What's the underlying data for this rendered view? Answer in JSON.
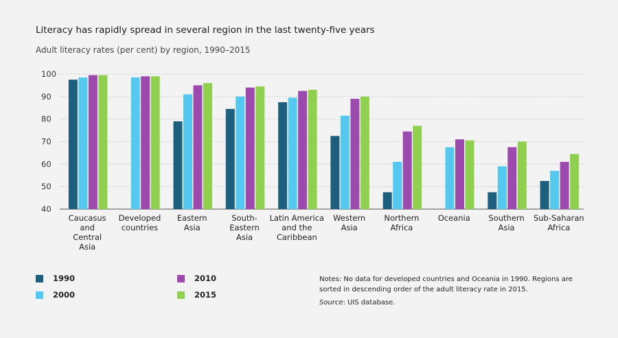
{
  "title": "Literacy has rapidly spread in several region in the last twenty-five years",
  "subtitle": "Adult literacy rates (per cent) by region, 1990–2015",
  "notes": "Notes: No data for developed countries and Oceania in 1990. Regions are sorted in descending order of the adult literacy rate in 2015.",
  "source_label": "Source",
  "source_text": ": UIS database.",
  "colors": {
    "1990": "#1d5f7d",
    "2000": "#55c8f0",
    "2010": "#9c4aad",
    "2015": "#8fd14f",
    "grid": "#c8c8c8",
    "axis": "#555555"
  },
  "chart_data": {
    "type": "bar",
    "title": "Literacy has rapidly spread in several region in the last twenty-five years",
    "subtitle": "Adult literacy rates (per cent) by region, 1990–2015",
    "ylim": [
      40,
      100
    ],
    "yticks": [
      40,
      50,
      60,
      70,
      80,
      90,
      100
    ],
    "grid": true,
    "legend_position": "bottom-left",
    "categories": [
      [
        "Caucasus",
        "and",
        "Central",
        "Asia"
      ],
      [
        "Developed",
        "countries"
      ],
      [
        "Eastern",
        "Asia"
      ],
      [
        "South-",
        "Eastern",
        "Asia"
      ],
      [
        "Latin America",
        "and the",
        "Caribbean"
      ],
      [
        "Western",
        "Asia"
      ],
      [
        "Northern",
        "Africa"
      ],
      [
        "Oceania"
      ],
      [
        "Southern",
        "Asia"
      ],
      [
        "Sub-Saharan",
        "Africa"
      ]
    ],
    "series": [
      {
        "name": "1990",
        "values": [
          97.5,
          null,
          79,
          84.5,
          87.5,
          72.5,
          47.5,
          null,
          47.5,
          52.5
        ]
      },
      {
        "name": "2000",
        "values": [
          98.5,
          98.5,
          91,
          90,
          89.5,
          81.5,
          61,
          67.5,
          59,
          57
        ]
      },
      {
        "name": "2010",
        "values": [
          99.5,
          99,
          95,
          94,
          92.5,
          89,
          74.5,
          71,
          67.5,
          61
        ]
      },
      {
        "name": "2015",
        "values": [
          99.5,
          99,
          96,
          94.5,
          93,
          90,
          77,
          70.5,
          70,
          64.5
        ]
      }
    ]
  }
}
